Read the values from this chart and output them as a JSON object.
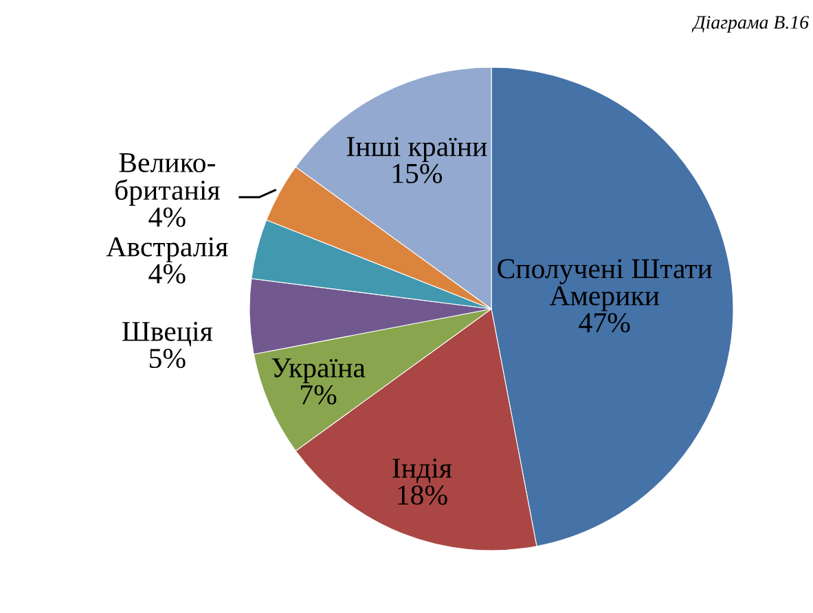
{
  "chart_data": {
    "type": "pie",
    "title": "Діаграма В.16",
    "categories": [
      "Сполучені Штати\nАмерики",
      "Індія",
      "Україна",
      "Швеція",
      "Австралія",
      "Велико-\nбританія",
      "Інші країни"
    ],
    "values": [
      47,
      18,
      7,
      5,
      4,
      4,
      15
    ],
    "value_labels": [
      "47%",
      "18%",
      "7%",
      "5%",
      "4%",
      "4%",
      "15%"
    ],
    "colors": [
      "#4572a7",
      "#aa4643",
      "#89a54e",
      "#71588f",
      "#4198af",
      "#db843d",
      "#93a9cf"
    ],
    "legend": false
  }
}
